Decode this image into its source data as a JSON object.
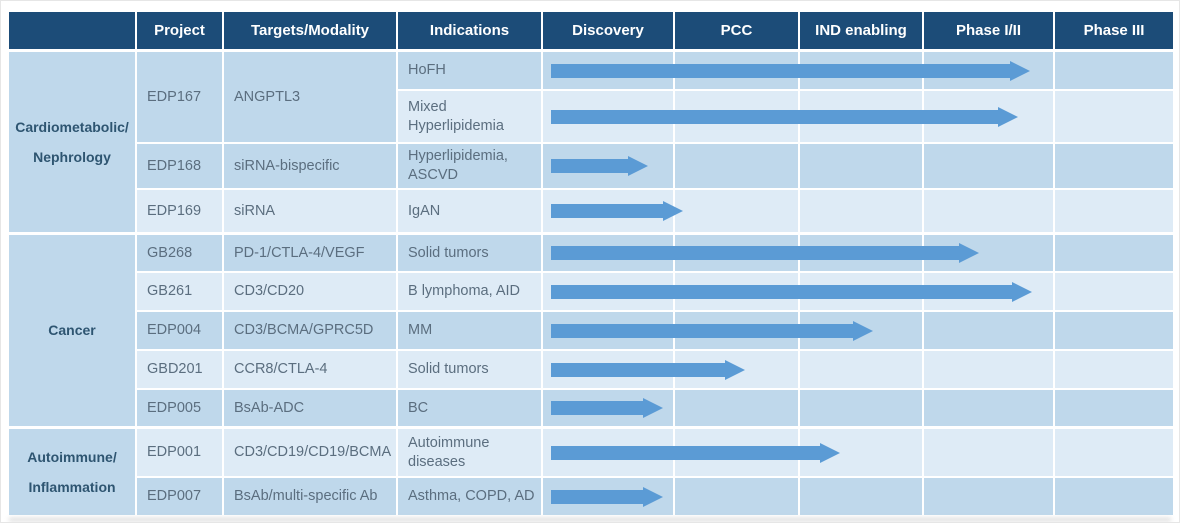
{
  "table": {
    "columns": [
      "",
      "Project",
      "Targets/Modality",
      "Indications",
      "Discovery",
      "PCC",
      "IND enabling",
      "Phase I/II",
      "Phase III"
    ]
  },
  "colors": {
    "header_bg": "#1C4C78",
    "header_text": "#FFFFFF",
    "row_medium": "#BFD8EB",
    "row_light": "#DEEBF6",
    "arrow": "#5B9BD5",
    "category_text": "#2E5571",
    "cell_text": "#5B6E7F"
  },
  "chart_data": {
    "type": "gantt-pipeline",
    "stages": [
      "Discovery",
      "PCC",
      "IND enabling",
      "Phase I/II",
      "Phase III"
    ],
    "progress_scale": "stage units: 0 = start of Discovery, 5 = end of Phase III",
    "groups": [
      {
        "category": "Cardiometabolic/Nephrology",
        "category_lines": [
          "Cardiometabolic/",
          "Nephrology"
        ],
        "programs": [
          {
            "project": "EDP167",
            "targets_modality": "ANGPTL3",
            "rows": [
              {
                "indication": "HoFH",
                "progress": 3.83,
                "phase_reached": "Phase I/II"
              },
              {
                "indication": "Mixed Hyperlipidemia",
                "progress": 3.74,
                "phase_reached": "Phase I/II"
              }
            ]
          },
          {
            "project": "EDP168",
            "targets_modality": "siRNA-bispecific",
            "rows": [
              {
                "indication": "Hyperlipidemia, ASCVD",
                "progress": 0.82,
                "phase_reached": "Discovery"
              }
            ]
          },
          {
            "project": "EDP169",
            "targets_modality": "siRNA",
            "rows": [
              {
                "indication": "IgAN",
                "progress": 1.09,
                "phase_reached": "PCC"
              }
            ]
          }
        ]
      },
      {
        "category": "Cancer",
        "category_lines": [
          "Cancer"
        ],
        "programs": [
          {
            "project": "GB268",
            "targets_modality": "PD-1/CTLA-4/VEGF",
            "rows": [
              {
                "indication": "Solid tumors",
                "progress": 3.44,
                "phase_reached": "Phase I/II"
              }
            ]
          },
          {
            "project": "GB261",
            "targets_modality": "CD3/CD20",
            "rows": [
              {
                "indication": "B lymphoma, AID",
                "progress": 3.85,
                "phase_reached": "Phase I/II"
              }
            ]
          },
          {
            "project": "EDP004",
            "targets_modality": "CD3/BCMA/GPRC5D",
            "rows": [
              {
                "indication": "MM",
                "progress": 2.61,
                "phase_reached": "IND enabling"
              }
            ]
          },
          {
            "project": "GBD201",
            "targets_modality": "CCR8/CTLA-4",
            "rows": [
              {
                "indication": "Solid tumors",
                "progress": 1.58,
                "phase_reached": "PCC"
              }
            ]
          },
          {
            "project": "EDP005",
            "targets_modality": "BsAb-ADC",
            "rows": [
              {
                "indication": "BC",
                "progress": 0.93,
                "phase_reached": "Discovery"
              }
            ]
          }
        ]
      },
      {
        "category": "Autoimmune/Inflammation",
        "category_lines": [
          "Autoimmune/",
          "Inflammation"
        ],
        "programs": [
          {
            "project": "EDP001",
            "targets_modality": "CD3/CD19/CD19/BCMA",
            "rows": [
              {
                "indication": "Autoimmune diseases",
                "progress": 2.35,
                "phase_reached": "IND enabling"
              }
            ]
          },
          {
            "project": "EDP007",
            "targets_modality": "BsAb/multi-specific Ab",
            "rows": [
              {
                "indication": "Asthma, COPD, AD",
                "progress": 0.93,
                "phase_reached": "Discovery"
              }
            ]
          }
        ]
      }
    ]
  }
}
